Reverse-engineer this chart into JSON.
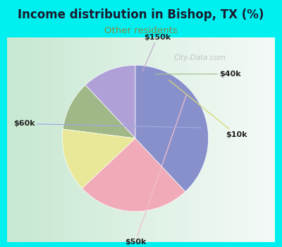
{
  "title": "Income distribution in Bishop, TX (%)",
  "subtitle": "Other residents",
  "title_color": "#1a1a2e",
  "subtitle_color": "#888844",
  "background_outer": "#00f0f0",
  "background_inner_left": "#c8e8c8",
  "background_inner_right": "#e8f4f0",
  "labels": [
    "$150k",
    "$40k",
    "$10k",
    "$50k",
    "$60k"
  ],
  "sizes": [
    12,
    11,
    14,
    25,
    38
  ],
  "colors": [
    "#b0a0d8",
    "#a0b888",
    "#e8e898",
    "#f0aab8",
    "#8890cc"
  ],
  "startangle": 90,
  "watermark": "City-Data.com",
  "label_color": "#222222",
  "line_colors": [
    "#c0a8d0",
    "#a8c090",
    "#d8d870",
    "#f0c0c8",
    "#a0a8e0"
  ]
}
